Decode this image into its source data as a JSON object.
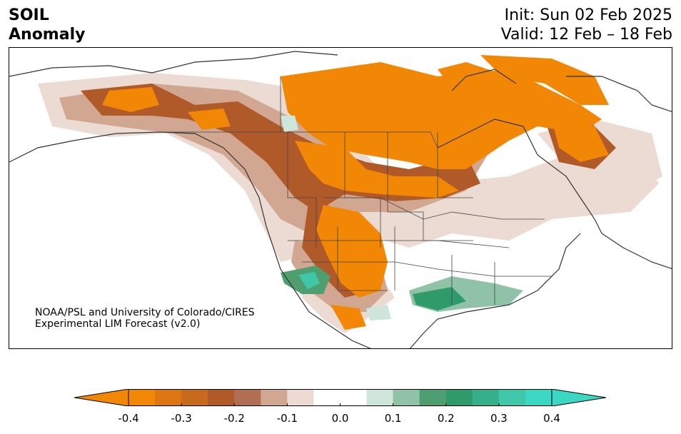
{
  "title": {
    "line1": "SOIL",
    "line2": "Anomaly"
  },
  "header": {
    "init": "Init: Sun 02 Feb 2025",
    "valid": "Valid: 12 Feb – 18 Feb"
  },
  "credit": {
    "line1": "NOAA/PSL and University of Colorado/CIRES",
    "line2": "Experimental LIM Forecast (v2.0)"
  },
  "colorbar": {
    "min": -0.4,
    "max": 0.4,
    "ticks": [
      "-0.4",
      "-0.3",
      "-0.2",
      "-0.1",
      "0.0",
      "0.1",
      "0.2",
      "0.3",
      "0.4"
    ],
    "colors": [
      "#f28705",
      "#dd7612",
      "#c86a1e",
      "#b05a2a",
      "#b06e52",
      "#d2a791",
      "#ecdbd3",
      "#ffffff",
      "#ffffff",
      "#cde5da",
      "#8fc2a7",
      "#4e9e70",
      "#2f9a6a",
      "#36b08a",
      "#40c6a8",
      "#3ad8c2"
    ],
    "extend_low_color": "#f28705",
    "extend_high_color": "#3ad8c2"
  },
  "map": {
    "region": "North America",
    "variable": "Soil moisture anomaly"
  }
}
